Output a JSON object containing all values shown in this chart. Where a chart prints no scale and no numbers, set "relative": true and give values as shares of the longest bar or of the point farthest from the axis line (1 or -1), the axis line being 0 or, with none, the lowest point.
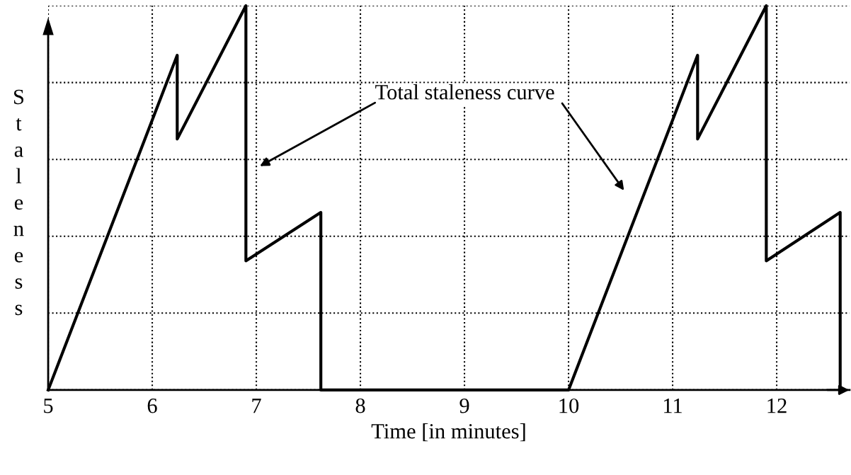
{
  "chart_data": {
    "type": "line",
    "relative": true,
    "xlabel": "Time [in minutes]",
    "ylabel": "Staleness",
    "x": [
      5,
      6.24,
      6.24,
      6.9,
      6.9,
      7.62,
      7.62,
      10,
      11.24,
      11.24,
      11.9,
      11.9,
      12.61,
      12.61
    ],
    "series": [
      {
        "color": "#000000",
        "values": [
          0,
          0.871,
          0.653,
          1,
          0.336,
          0.462,
          0,
          0,
          0.871,
          0.653,
          1,
          0.336,
          0.462,
          0
        ]
      }
    ],
    "xlim": [
      5,
      12.7
    ],
    "xticks": [
      5,
      6,
      7,
      8,
      9,
      10,
      11,
      12
    ],
    "grid": true,
    "marker": "none",
    "line_style": "solid",
    "annotations": [
      "Total staleness curve"
    ]
  }
}
